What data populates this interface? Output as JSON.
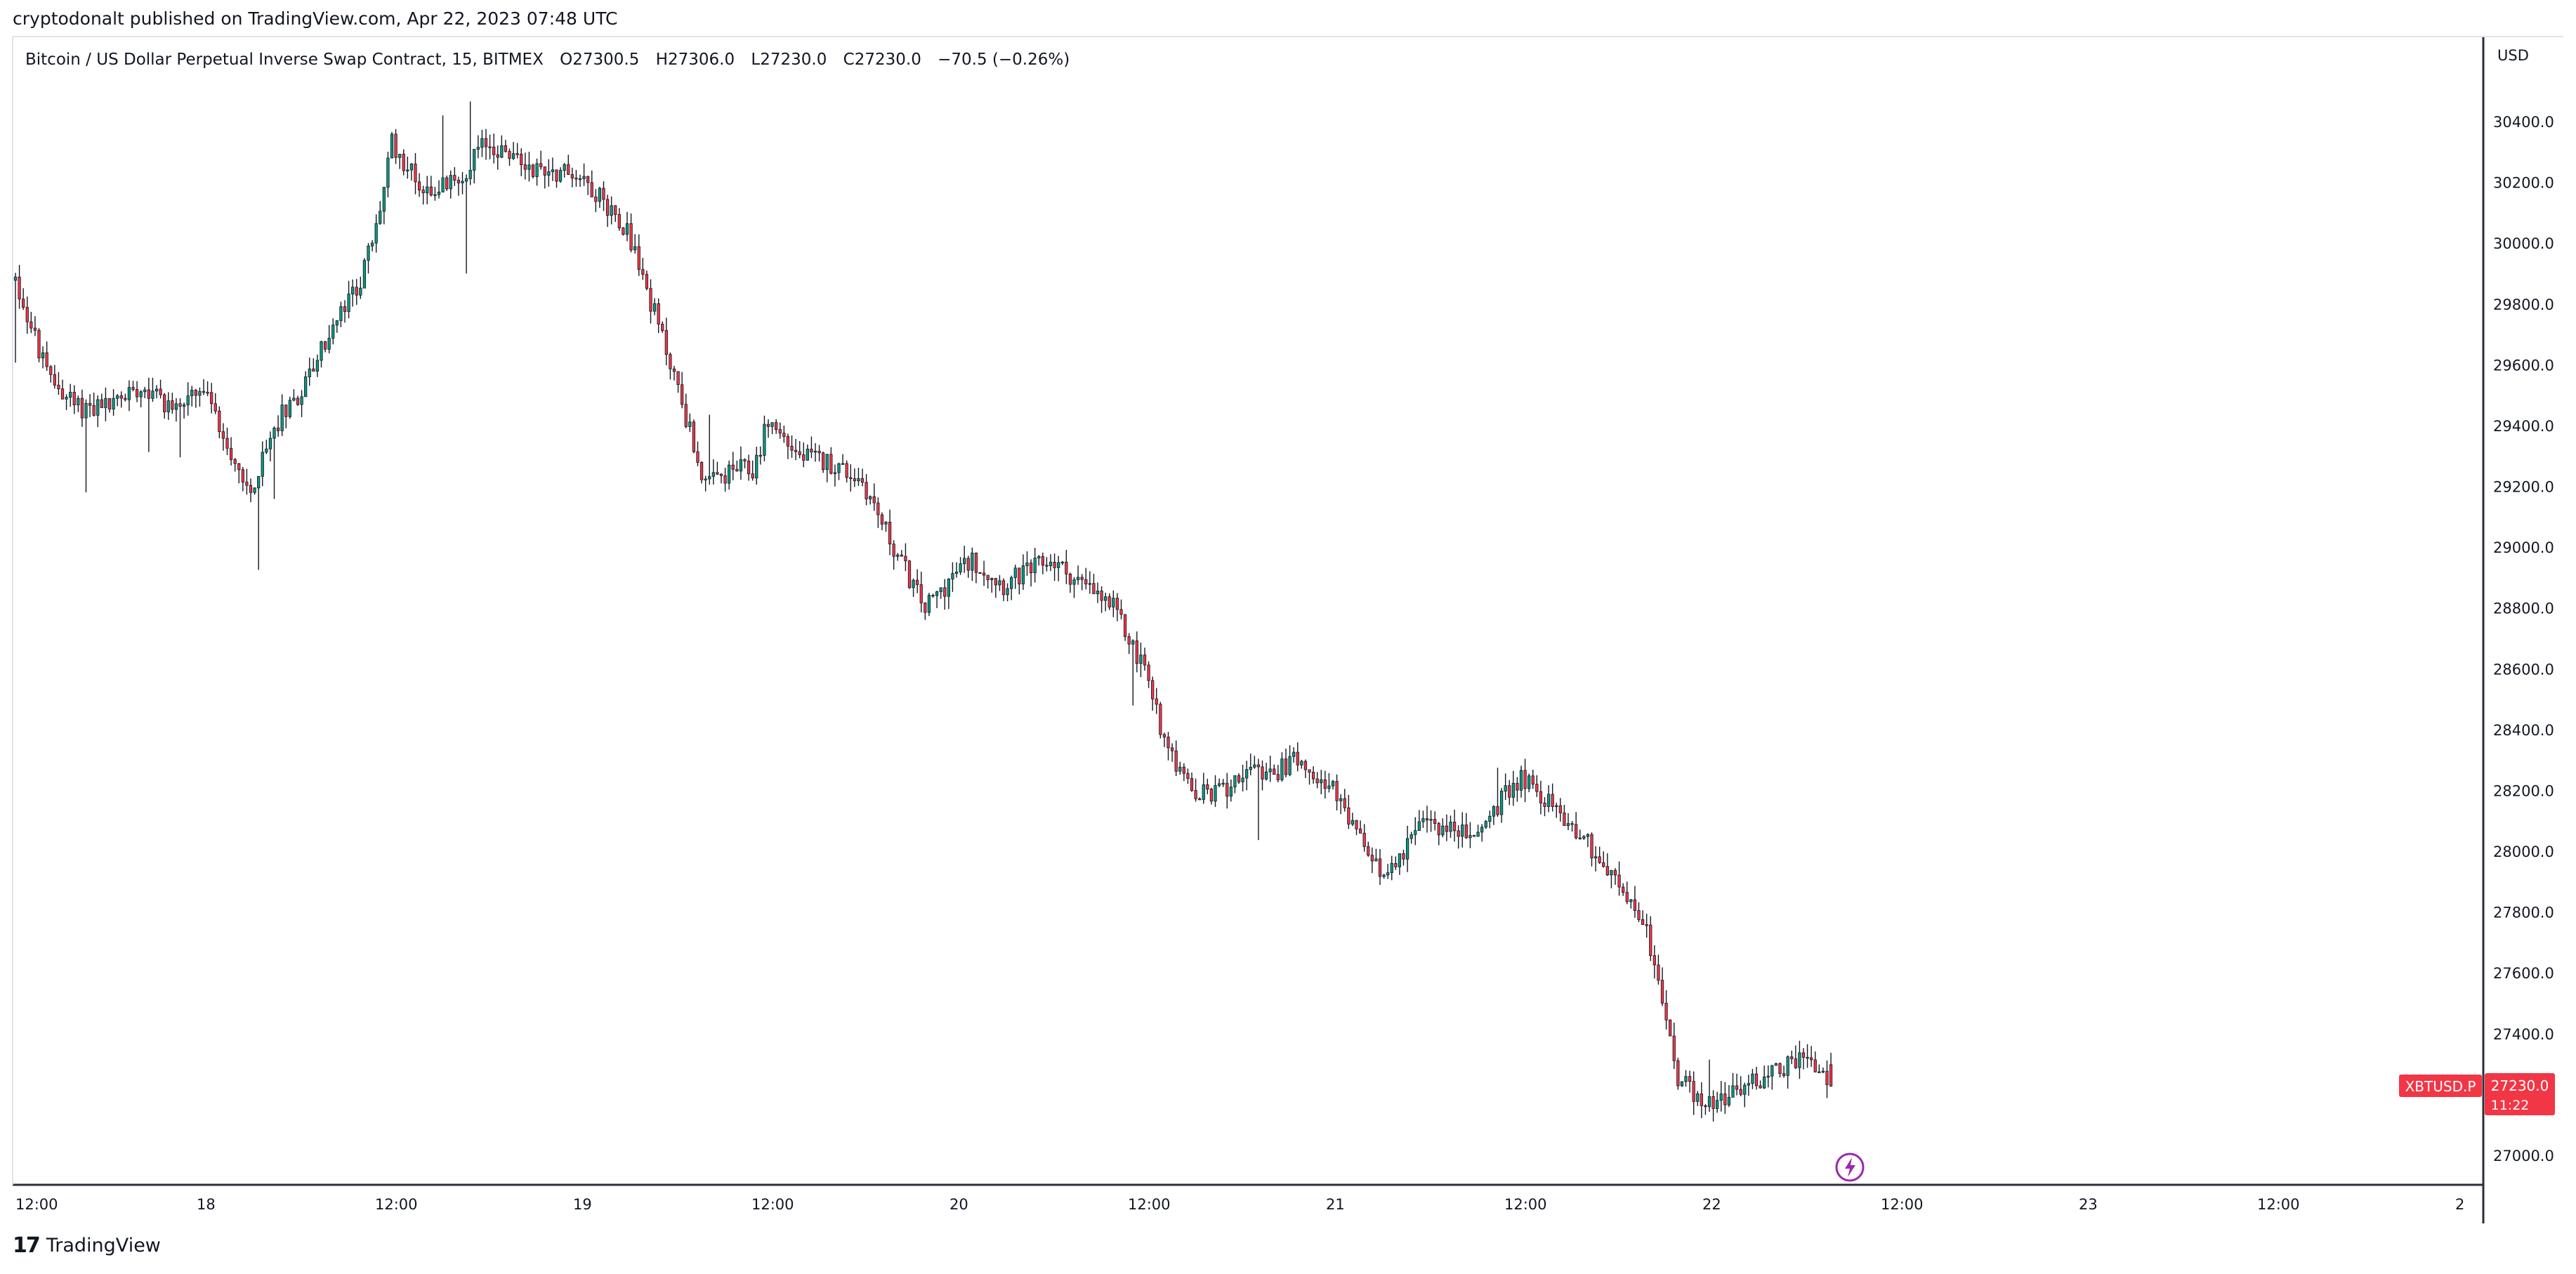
{
  "header": {
    "published": "cryptodonalt published on TradingView.com, Apr 22, 2023 07:48 UTC"
  },
  "legend": {
    "symbol": "Bitcoin / US Dollar Perpetual Inverse Swap Contract, 15, BITMEX",
    "open": "O27300.5",
    "high": "H27306.0",
    "low": "L27230.0",
    "close": "C27230.0",
    "change": "−70.5 (−0.26%)"
  },
  "price_axis": {
    "currency": "USD",
    "ticks": [
      "30400.0",
      "30200.0",
      "30000.0",
      "29800.0",
      "29600.0",
      "29400.0",
      "29200.0",
      "29000.0",
      "28800.0",
      "28600.0",
      "28400.0",
      "28200.0",
      "28000.0",
      "27800.0",
      "27600.0",
      "27400.0",
      "27000.0"
    ]
  },
  "time_axis": {
    "ticks": [
      "12:00",
      "18",
      "12:00",
      "19",
      "12:00",
      "20",
      "12:00",
      "21",
      "12:00",
      "22",
      "12:00",
      "23",
      "12:00",
      "2"
    ]
  },
  "last_price": {
    "symbol_label": "XBTUSD.P",
    "price": "27230.0",
    "countdown": "11:22",
    "color": "#f23645"
  },
  "colors": {
    "up": "#089981",
    "down": "#f23645",
    "wick": "#131722",
    "grid_line": "#2a2e39"
  },
  "icons": {
    "event": "lightning-icon"
  },
  "footer": {
    "brand": "TradingView",
    "mark": "17"
  },
  "chart_data": {
    "type": "candlestick",
    "symbol": "XBTUSD.P",
    "interval": "15",
    "exchange": "BITMEX",
    "currency": "USD",
    "ylim": [
      26900,
      30560
    ],
    "x_range": [
      "Apr 17 12:00",
      "Apr 24"
    ],
    "last": {
      "open": 27300.5,
      "high": 27306.0,
      "low": 27230.0,
      "close": 27230.0,
      "change": -70.5,
      "change_pct": -0.26
    },
    "series": [
      {
        "name": "close",
        "x": [
          "Apr 17 12:00",
          "Apr 17 14:00",
          "Apr 17 16:00",
          "Apr 17 18:00",
          "Apr 17 20:00",
          "Apr 17 22:00",
          "Apr 18 00:00",
          "Apr 18 03:00",
          "Apr 18 05:00",
          "Apr 18 06:00",
          "Apr 18 08:00",
          "Apr 18 10:00",
          "Apr 18 11:00",
          "Apr 18 12:00",
          "Apr 18 14:00",
          "Apr 18 16:00",
          "Apr 18 18:00",
          "Apr 18 21:00",
          "Apr 19 00:00",
          "Apr 19 03:00",
          "Apr 19 06:00",
          "Apr 19 08:00",
          "Apr 19 10:00",
          "Apr 19 11:00",
          "Apr 19 12:00",
          "Apr 19 14:00",
          "Apr 19 16:00",
          "Apr 19 18:00",
          "Apr 19 20:00",
          "Apr 19 22:00",
          "Apr 20 00:00",
          "Apr 20 01:00",
          "Apr 20 03:00",
          "Apr 20 06:00",
          "Apr 20 08:00",
          "Apr 20 10:00",
          "Apr 20 12:00",
          "Apr 20 13:00",
          "Apr 20 15:00",
          "Apr 20 17:00",
          "Apr 20 18:00",
          "Apr 20 20:00",
          "Apr 20 22:00",
          "Apr 21 00:00",
          "Apr 21 03:00",
          "Apr 21 06:00",
          "Apr 21 09:00",
          "Apr 21 12:00",
          "Apr 21 14:00",
          "Apr 21 16:00",
          "Apr 21 18:00",
          "Apr 21 20:00",
          "Apr 21 22:00",
          "Apr 22 00:00",
          "Apr 22 03:00",
          "Apr 22 06:00",
          "Apr 22 07:45"
        ],
        "values": [
          29880,
          29570,
          29460,
          29470,
          29540,
          29460,
          29510,
          29180,
          29450,
          29500,
          29700,
          29880,
          30050,
          30330,
          30180,
          30200,
          30330,
          30250,
          30230,
          30050,
          29570,
          29200,
          29260,
          29250,
          29420,
          29300,
          29280,
          29220,
          29000,
          28800,
          28920,
          28960,
          28880,
          28960,
          28880,
          28800,
          28600,
          28420,
          28180,
          28200,
          28260,
          28250,
          28320,
          28200,
          27920,
          28100,
          28050,
          28250,
          28150,
          28050,
          27900,
          27750,
          27250,
          27170,
          27250,
          27330,
          27230
        ]
      }
    ]
  }
}
